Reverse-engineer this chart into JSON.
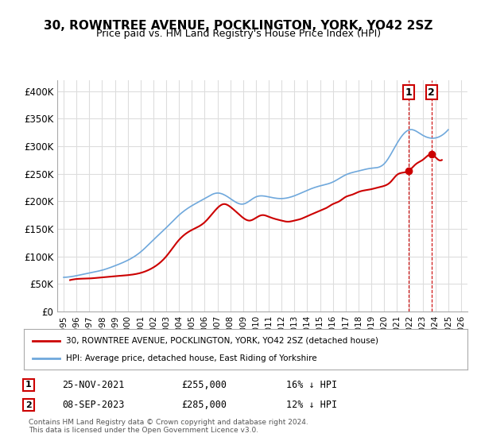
{
  "title": "30, ROWNTREE AVENUE, POCKLINGTON, YORK, YO42 2SZ",
  "subtitle": "Price paid vs. HM Land Registry's House Price Index (HPI)",
  "legend_line1": "30, ROWNTREE AVENUE, POCKLINGTON, YORK, YO42 2SZ (detached house)",
  "legend_line2": "HPI: Average price, detached house, East Riding of Yorkshire",
  "annotation1_label": "1",
  "annotation1_date": "25-NOV-2021",
  "annotation1_price": "£255,000",
  "annotation1_hpi": "16% ↓ HPI",
  "annotation1_year": 2021.9,
  "annotation1_value": 255000,
  "annotation2_label": "2",
  "annotation2_date": "08-SEP-2023",
  "annotation2_price": "£285,000",
  "annotation2_hpi": "12% ↓ HPI",
  "annotation2_year": 2023.7,
  "annotation2_value": 285000,
  "hpi_color": "#6fa8dc",
  "price_color": "#cc0000",
  "annotation_box_color": "#cc0000",
  "grid_color": "#dddddd",
  "background_color": "#ffffff",
  "ylabel": "",
  "ylim_min": 0,
  "ylim_max": 420000,
  "yticks": [
    0,
    50000,
    100000,
    150000,
    200000,
    250000,
    300000,
    350000,
    400000
  ],
  "ytick_labels": [
    "£0",
    "£50K",
    "£100K",
    "£150K",
    "£200K",
    "£250K",
    "£300K",
    "£350K",
    "£400K"
  ],
  "copyright_text": "Contains HM Land Registry data © Crown copyright and database right 2024.\nThis data is licensed under the Open Government Licence v3.0.",
  "hpi_data_years": [
    1995,
    1996,
    1997,
    1998,
    1999,
    2000,
    2001,
    2002,
    2003,
    2004,
    2005,
    2006,
    2007,
    2008,
    2009,
    2010,
    2011,
    2012,
    2013,
    2014,
    2015,
    2016,
    2017,
    2018,
    2019,
    2020,
    2021,
    2022,
    2023,
    2024,
    2025
  ],
  "hpi_values": [
    62000,
    65000,
    70000,
    75000,
    83000,
    93000,
    108000,
    130000,
    152000,
    175000,
    192000,
    205000,
    215000,
    205000,
    195000,
    208000,
    208000,
    205000,
    210000,
    220000,
    228000,
    235000,
    248000,
    255000,
    260000,
    268000,
    305000,
    330000,
    320000,
    315000,
    330000
  ],
  "price_data": [
    [
      1995.5,
      57000
    ],
    [
      1996.0,
      59000
    ],
    [
      1997.0,
      60000
    ],
    [
      1998.0,
      62000
    ],
    [
      1999.0,
      64000
    ],
    [
      2000.0,
      66000
    ],
    [
      2001.0,
      70000
    ],
    [
      2002.0,
      80000
    ],
    [
      2003.0,
      100000
    ],
    [
      2004.0,
      130000
    ],
    [
      2005.0,
      148000
    ],
    [
      2006.0,
      162000
    ],
    [
      2007.0,
      188000
    ],
    [
      2007.5,
      195000
    ],
    [
      2008.0,
      190000
    ],
    [
      2008.5,
      180000
    ],
    [
      2009.0,
      170000
    ],
    [
      2009.5,
      165000
    ],
    [
      2010.0,
      170000
    ],
    [
      2010.5,
      175000
    ],
    [
      2011.0,
      172000
    ],
    [
      2011.5,
      168000
    ],
    [
      2012.0,
      165000
    ],
    [
      2012.5,
      163000
    ],
    [
      2013.0,
      165000
    ],
    [
      2013.5,
      168000
    ],
    [
      2014.0,
      173000
    ],
    [
      2014.5,
      178000
    ],
    [
      2015.0,
      183000
    ],
    [
      2015.5,
      188000
    ],
    [
      2016.0,
      195000
    ],
    [
      2016.5,
      200000
    ],
    [
      2017.0,
      208000
    ],
    [
      2017.5,
      212000
    ],
    [
      2018.0,
      217000
    ],
    [
      2018.5,
      220000
    ],
    [
      2019.0,
      222000
    ],
    [
      2019.5,
      225000
    ],
    [
      2020.0,
      228000
    ],
    [
      2020.5,
      235000
    ],
    [
      2021.0,
      248000
    ],
    [
      2021.9,
      255000
    ],
    [
      2022.5,
      268000
    ],
    [
      2023.0,
      275000
    ],
    [
      2023.7,
      285000
    ],
    [
      2024.0,
      280000
    ],
    [
      2024.5,
      275000
    ]
  ]
}
